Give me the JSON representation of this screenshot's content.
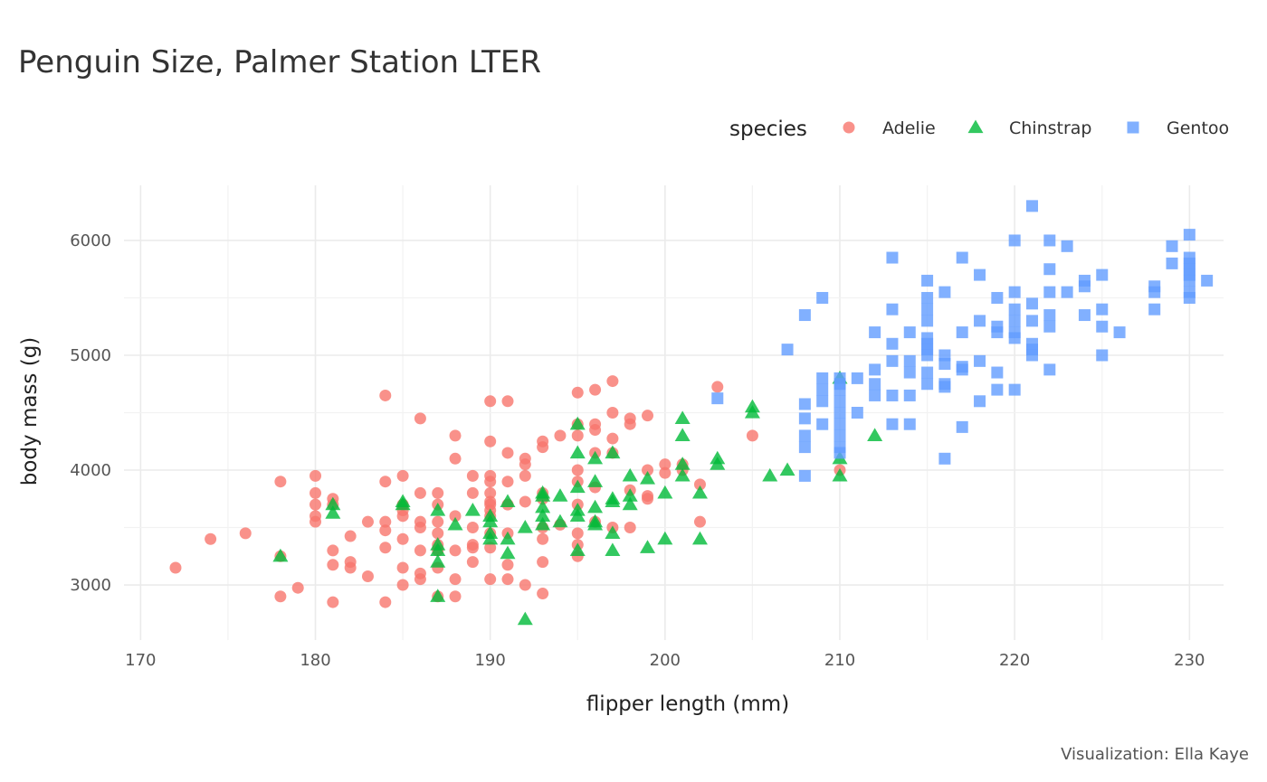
{
  "chart_data": {
    "type": "scatter",
    "title": "Penguin Size, Palmer Station LTER",
    "xlabel": "flipper length (mm)",
    "ylabel": "body mass (g)",
    "caption": "Visualization: Ella Kaye",
    "legend_title": "species",
    "legend_position": "top-right",
    "grid": true,
    "xlim": [
      169.05,
      231.95
    ],
    "ylim": [
      2520,
      6480
    ],
    "x_ticks": [
      170,
      180,
      190,
      200,
      210,
      220,
      230
    ],
    "y_ticks": [
      3000,
      4000,
      5000,
      6000
    ],
    "series": [
      {
        "name": "Adelie",
        "shape": "circle",
        "color": "#F8766D",
        "points": [
          [
            172,
            3150
          ],
          [
            174,
            3400
          ],
          [
            176,
            3450
          ],
          [
            178,
            3900
          ],
          [
            178,
            2900
          ],
          [
            178,
            3250
          ],
          [
            179,
            2975
          ],
          [
            180,
            3950
          ],
          [
            180,
            3800
          ],
          [
            180,
            3700
          ],
          [
            180,
            3600
          ],
          [
            180,
            3550
          ],
          [
            181,
            3750
          ],
          [
            181,
            3700
          ],
          [
            181,
            3300
          ],
          [
            181,
            3175
          ],
          [
            181,
            2850
          ],
          [
            182,
            3425
          ],
          [
            182,
            3200
          ],
          [
            182,
            3150
          ],
          [
            183,
            3550
          ],
          [
            183,
            3075
          ],
          [
            184,
            4650
          ],
          [
            184,
            3900
          ],
          [
            184,
            3550
          ],
          [
            184,
            3475
          ],
          [
            184,
            3325
          ],
          [
            184,
            2850
          ],
          [
            185,
            3950
          ],
          [
            185,
            3700
          ],
          [
            185,
            3650
          ],
          [
            185,
            3600
          ],
          [
            185,
            3400
          ],
          [
            185,
            3150
          ],
          [
            185,
            3000
          ],
          [
            186,
            4450
          ],
          [
            186,
            3800
          ],
          [
            186,
            3550
          ],
          [
            186,
            3500
          ],
          [
            186,
            3300
          ],
          [
            186,
            3100
          ],
          [
            186,
            3050
          ],
          [
            187,
            3800
          ],
          [
            187,
            3700
          ],
          [
            187,
            3550
          ],
          [
            187,
            3450
          ],
          [
            187,
            3350
          ],
          [
            187,
            3300
          ],
          [
            187,
            3150
          ],
          [
            187,
            2900
          ],
          [
            188,
            4300
          ],
          [
            188,
            4100
          ],
          [
            188,
            3600
          ],
          [
            188,
            3300
          ],
          [
            188,
            3050
          ],
          [
            188,
            2900
          ],
          [
            189,
            3950
          ],
          [
            189,
            3800
          ],
          [
            189,
            3500
          ],
          [
            189,
            3350
          ],
          [
            189,
            3325
          ],
          [
            189,
            3200
          ],
          [
            190,
            4600
          ],
          [
            190,
            4250
          ],
          [
            190,
            3950
          ],
          [
            190,
            3900
          ],
          [
            190,
            3800
          ],
          [
            190,
            3725
          ],
          [
            190,
            3700
          ],
          [
            190,
            3650
          ],
          [
            190,
            3600
          ],
          [
            190,
            3450
          ],
          [
            190,
            3325
          ],
          [
            190,
            3050
          ],
          [
            191,
            4600
          ],
          [
            191,
            4150
          ],
          [
            191,
            3900
          ],
          [
            191,
            3700
          ],
          [
            191,
            3450
          ],
          [
            191,
            3175
          ],
          [
            191,
            3050
          ],
          [
            192,
            4100
          ],
          [
            192,
            4050
          ],
          [
            192,
            3950
          ],
          [
            192,
            3725
          ],
          [
            192,
            3000
          ],
          [
            193,
            4250
          ],
          [
            193,
            4200
          ],
          [
            193,
            3800
          ],
          [
            193,
            3750
          ],
          [
            193,
            3500
          ],
          [
            193,
            3400
          ],
          [
            193,
            3200
          ],
          [
            193,
            2925
          ],
          [
            194,
            4300
          ],
          [
            194,
            3525
          ],
          [
            195,
            4675
          ],
          [
            195,
            4400
          ],
          [
            195,
            4300
          ],
          [
            195,
            4000
          ],
          [
            195,
            3900
          ],
          [
            195,
            3700
          ],
          [
            195,
            3450
          ],
          [
            195,
            3350
          ],
          [
            195,
            3250
          ],
          [
            196,
            4700
          ],
          [
            196,
            4400
          ],
          [
            196,
            4350
          ],
          [
            196,
            4150
          ],
          [
            196,
            3850
          ],
          [
            196,
            3550
          ],
          [
            197,
            4775
          ],
          [
            197,
            4500
          ],
          [
            197,
            4275
          ],
          [
            197,
            4150
          ],
          [
            197,
            3500
          ],
          [
            198,
            4450
          ],
          [
            198,
            4400
          ],
          [
            198,
            3825
          ],
          [
            198,
            3500
          ],
          [
            199,
            4475
          ],
          [
            199,
            4000
          ],
          [
            199,
            3775
          ],
          [
            199,
            3750
          ],
          [
            200,
            4050
          ],
          [
            200,
            3975
          ],
          [
            201,
            4050
          ],
          [
            201,
            4000
          ],
          [
            202,
            3875
          ],
          [
            202,
            3550
          ],
          [
            203,
            4725
          ],
          [
            205,
            4300
          ],
          [
            210,
            4000
          ]
        ]
      },
      {
        "name": "Chinstrap",
        "shape": "triangle",
        "color": "#00BA38",
        "points": [
          [
            178,
            3250
          ],
          [
            181,
            3700
          ],
          [
            181,
            3625
          ],
          [
            185,
            3725
          ],
          [
            185,
            3700
          ],
          [
            187,
            3650
          ],
          [
            187,
            3350
          ],
          [
            187,
            3300
          ],
          [
            187,
            3200
          ],
          [
            187,
            2900
          ],
          [
            188,
            3525
          ],
          [
            189,
            3650
          ],
          [
            190,
            3600
          ],
          [
            190,
            3550
          ],
          [
            190,
            3450
          ],
          [
            190,
            3400
          ],
          [
            191,
            3725
          ],
          [
            191,
            3400
          ],
          [
            191,
            3275
          ],
          [
            192,
            3500
          ],
          [
            192,
            2700
          ],
          [
            193,
            3800
          ],
          [
            193,
            3775
          ],
          [
            193,
            3675
          ],
          [
            193,
            3600
          ],
          [
            193,
            3525
          ],
          [
            194,
            3775
          ],
          [
            194,
            3550
          ],
          [
            195,
            4400
          ],
          [
            195,
            4150
          ],
          [
            195,
            3850
          ],
          [
            195,
            3650
          ],
          [
            195,
            3600
          ],
          [
            195,
            3300
          ],
          [
            196,
            4100
          ],
          [
            196,
            3900
          ],
          [
            196,
            3675
          ],
          [
            196,
            3550
          ],
          [
            196,
            3525
          ],
          [
            197,
            4150
          ],
          [
            197,
            3750
          ],
          [
            197,
            3725
          ],
          [
            197,
            3450
          ],
          [
            197,
            3300
          ],
          [
            198,
            3950
          ],
          [
            198,
            3775
          ],
          [
            198,
            3700
          ],
          [
            199,
            3925
          ],
          [
            199,
            3325
          ],
          [
            200,
            3800
          ],
          [
            200,
            3400
          ],
          [
            201,
            4450
          ],
          [
            201,
            4300
          ],
          [
            201,
            4050
          ],
          [
            201,
            3950
          ],
          [
            202,
            3800
          ],
          [
            202,
            3400
          ],
          [
            203,
            4100
          ],
          [
            203,
            4050
          ],
          [
            205,
            4550
          ],
          [
            205,
            4500
          ],
          [
            206,
            3950
          ],
          [
            207,
            4000
          ],
          [
            210,
            4800
          ],
          [
            210,
            4100
          ],
          [
            210,
            3950
          ],
          [
            212,
            4300
          ]
        ]
      },
      {
        "name": "Gentoo",
        "shape": "square",
        "color": "#619CFF",
        "points": [
          [
            203,
            4625
          ],
          [
            207,
            5050
          ],
          [
            208,
            5350
          ],
          [
            208,
            4575
          ],
          [
            208,
            4450
          ],
          [
            208,
            4300
          ],
          [
            208,
            4200
          ],
          [
            208,
            3950
          ],
          [
            209,
            5500
          ],
          [
            209,
            4800
          ],
          [
            209,
            4700
          ],
          [
            209,
            4600
          ],
          [
            209,
            4400
          ],
          [
            210,
            4800
          ],
          [
            210,
            4750
          ],
          [
            210,
            4700
          ],
          [
            210,
            4600
          ],
          [
            210,
            4500
          ],
          [
            210,
            4400
          ],
          [
            210,
            4300
          ],
          [
            210,
            4200
          ],
          [
            210,
            4150
          ],
          [
            211,
            4800
          ],
          [
            211,
            4500
          ],
          [
            212,
            5200
          ],
          [
            212,
            4875
          ],
          [
            212,
            4750
          ],
          [
            212,
            4650
          ],
          [
            213,
            5850
          ],
          [
            213,
            5400
          ],
          [
            213,
            5100
          ],
          [
            213,
            4950
          ],
          [
            213,
            4650
          ],
          [
            213,
            4400
          ],
          [
            214,
            5200
          ],
          [
            214,
            4950
          ],
          [
            214,
            4850
          ],
          [
            214,
            4650
          ],
          [
            214,
            4400
          ],
          [
            215,
            5650
          ],
          [
            215,
            5500
          ],
          [
            215,
            5400
          ],
          [
            215,
            5300
          ],
          [
            215,
            5150
          ],
          [
            215,
            5100
          ],
          [
            215,
            5050
          ],
          [
            215,
            5000
          ],
          [
            215,
            4850
          ],
          [
            215,
            4750
          ],
          [
            216,
            5550
          ],
          [
            216,
            5000
          ],
          [
            216,
            4925
          ],
          [
            216,
            4750
          ],
          [
            216,
            4725
          ],
          [
            216,
            4100
          ],
          [
            217,
            5850
          ],
          [
            217,
            5200
          ],
          [
            217,
            4900
          ],
          [
            217,
            4875
          ],
          [
            217,
            4375
          ],
          [
            218,
            5700
          ],
          [
            218,
            5300
          ],
          [
            218,
            4950
          ],
          [
            218,
            4600
          ],
          [
            219,
            5500
          ],
          [
            219,
            5250
          ],
          [
            219,
            5200
          ],
          [
            219,
            4850
          ],
          [
            219,
            4700
          ],
          [
            220,
            6000
          ],
          [
            220,
            5550
          ],
          [
            220,
            5400
          ],
          [
            220,
            5300
          ],
          [
            220,
            5200
          ],
          [
            220,
            5150
          ],
          [
            220,
            4700
          ],
          [
            221,
            6300
          ],
          [
            221,
            5450
          ],
          [
            221,
            5300
          ],
          [
            221,
            5100
          ],
          [
            221,
            5050
          ],
          [
            221,
            5000
          ],
          [
            222,
            6000
          ],
          [
            222,
            5750
          ],
          [
            222,
            5550
          ],
          [
            222,
            5350
          ],
          [
            222,
            5250
          ],
          [
            222,
            4875
          ],
          [
            223,
            5950
          ],
          [
            223,
            5550
          ],
          [
            224,
            5650
          ],
          [
            224,
            5600
          ],
          [
            224,
            5350
          ],
          [
            225,
            5700
          ],
          [
            225,
            5400
          ],
          [
            225,
            5250
          ],
          [
            225,
            5000
          ],
          [
            226,
            5200
          ],
          [
            228,
            5600
          ],
          [
            228,
            5550
          ],
          [
            228,
            5400
          ],
          [
            229,
            5950
          ],
          [
            229,
            5800
          ],
          [
            230,
            6050
          ],
          [
            230,
            5850
          ],
          [
            230,
            5800
          ],
          [
            230,
            5750
          ],
          [
            230,
            5700
          ],
          [
            230,
            5650
          ],
          [
            230,
            5550
          ],
          [
            230,
            5500
          ],
          [
            231,
            5650
          ]
        ]
      }
    ]
  }
}
